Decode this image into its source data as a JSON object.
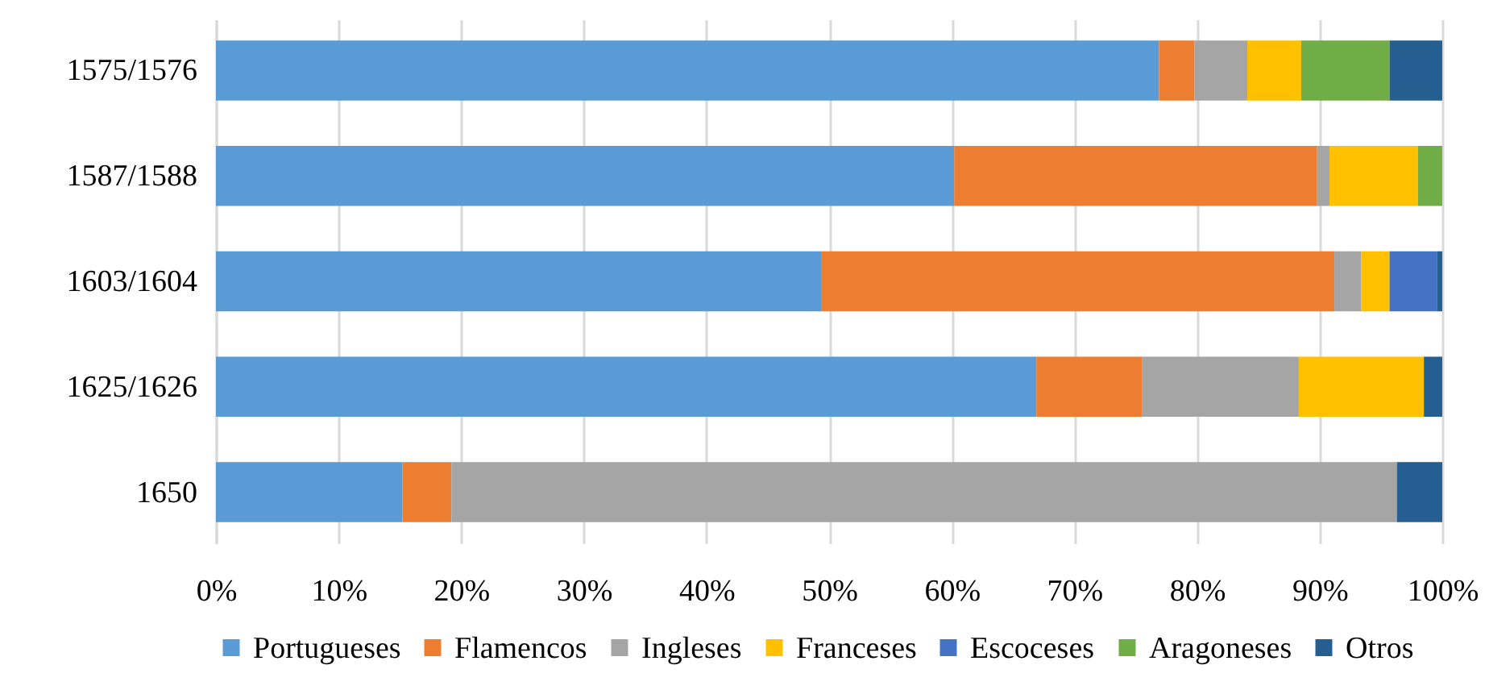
{
  "chart_data": {
    "type": "bar",
    "orientation": "horizontal",
    "stacked": true,
    "categories": [
      "1575/1576",
      "1587/1588",
      "1603/1604",
      "1625/1626",
      "1650"
    ],
    "series": [
      {
        "name": "Portugueses",
        "color": "#5b9bd5",
        "values": [
          76.9,
          60.2,
          49.4,
          66.9,
          15.2
        ]
      },
      {
        "name": "Flamencos",
        "color": "#ed7d31",
        "values": [
          2.9,
          29.6,
          41.8,
          8.6,
          4.0
        ]
      },
      {
        "name": "Ingleses",
        "color": "#a5a5a5",
        "values": [
          4.3,
          1.0,
          2.2,
          12.8,
          77.1
        ]
      },
      {
        "name": "Franceses",
        "color": "#ffc000",
        "values": [
          4.4,
          7.2,
          2.3,
          10.2,
          0
        ]
      },
      {
        "name": "Escoceses",
        "color": "#4472c4",
        "values": [
          0,
          0,
          3.9,
          0,
          0
        ]
      },
      {
        "name": "Aragoneses",
        "color": "#70ad47",
        "values": [
          7.2,
          2.0,
          0,
          0,
          0
        ]
      },
      {
        "name": "Otros",
        "color": "#255e91",
        "values": [
          4.3,
          0,
          0.4,
          1.5,
          3.7
        ]
      }
    ],
    "xlim": [
      0,
      100
    ],
    "xticks": [
      {
        "value": 0,
        "label": "0%"
      },
      {
        "value": 10,
        "label": "10%"
      },
      {
        "value": 20,
        "label": "20%"
      },
      {
        "value": 30,
        "label": "30%"
      },
      {
        "value": 40,
        "label": "40%"
      },
      {
        "value": 50,
        "label": "50%"
      },
      {
        "value": 60,
        "label": "60%"
      },
      {
        "value": 70,
        "label": "70%"
      },
      {
        "value": 80,
        "label": "80%"
      },
      {
        "value": 90,
        "label": "90%"
      },
      {
        "value": 100,
        "label": "100%"
      }
    ],
    "grid": "x",
    "legend": "bottom"
  }
}
